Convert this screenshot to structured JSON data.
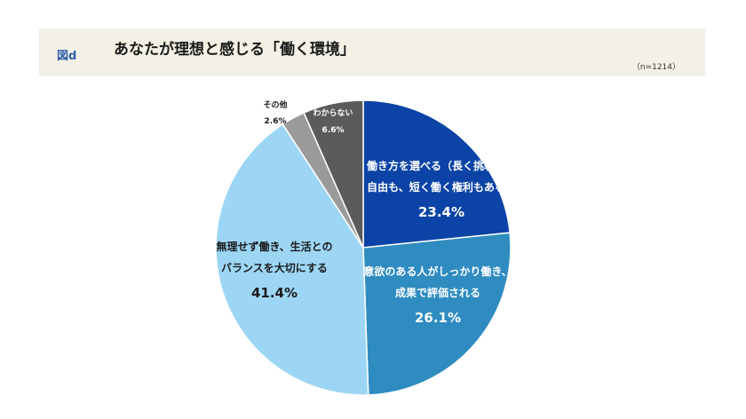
{
  "header": {
    "figure_label": "図d",
    "title": "あなたが理想と感じる「働く環境」",
    "sample_size": "（n=1214）"
  },
  "chart_data": {
    "type": "pie",
    "title": "あなたが理想と感じる「働く環境」",
    "start": "12 o'clock, clockwise",
    "slices": [
      {
        "label_lines": [
          "働き方を選べる（長く挑戦する",
          "自由も、短く働く権利もある）"
        ],
        "value": 23.4,
        "value_label": "23.4%",
        "color": "#0b44a6",
        "text_color": "#ffffff",
        "label_position": "inside"
      },
      {
        "label_lines": [
          "意欲のある人がしっかり働き、",
          "成果で評価される"
        ],
        "value": 26.1,
        "value_label": "26.1%",
        "color": "#2f8cc0",
        "text_color": "#ffffff",
        "label_position": "inside"
      },
      {
        "label_lines": [
          "無理せず働き、生活との",
          "バランスを大切にする"
        ],
        "value": 41.4,
        "value_label": "41.4%",
        "color": "#9dd6f5",
        "text_color": "#1a1a1a",
        "label_position": "inside"
      },
      {
        "label_lines": [
          "その他"
        ],
        "value": 2.6,
        "value_label": "2.6%",
        "color": "#9a9a9a",
        "text_color": "#1a1a1a",
        "label_position": "outside"
      },
      {
        "label_lines": [
          "わからない"
        ],
        "value": 6.6,
        "value_label": "6.6%",
        "color": "#5b5b5b",
        "text_color": "#ffffff",
        "label_position": "inside"
      }
    ]
  }
}
